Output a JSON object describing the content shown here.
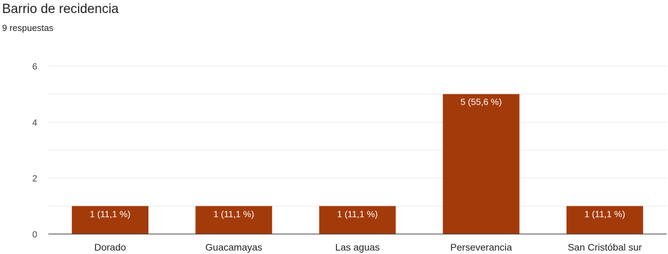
{
  "title": "Barrio de recidencia",
  "subtitle": "9 respuestas",
  "colors": {
    "bar": "#a33a0a",
    "grid": "#ebebeb",
    "axis": "#333333"
  },
  "chart_data": {
    "type": "bar",
    "title": "Barrio de recidencia",
    "categories": [
      "Dorado",
      "Guacamayas",
      "Las aguas",
      "Perseverancia",
      "San Cristóbal sur"
    ],
    "values": [
      1,
      1,
      1,
      5,
      1
    ],
    "data_labels": [
      "1 (11,1 %)",
      "1 (11,1 %)",
      "1 (11,1 %)",
      "5 (55,6 %)",
      "1 (11,1 %)"
    ],
    "ylim": [
      0,
      6
    ],
    "yticks": [
      0,
      2,
      4,
      6
    ],
    "grid": true,
    "legend": "none",
    "xlabel": "",
    "ylabel": ""
  }
}
